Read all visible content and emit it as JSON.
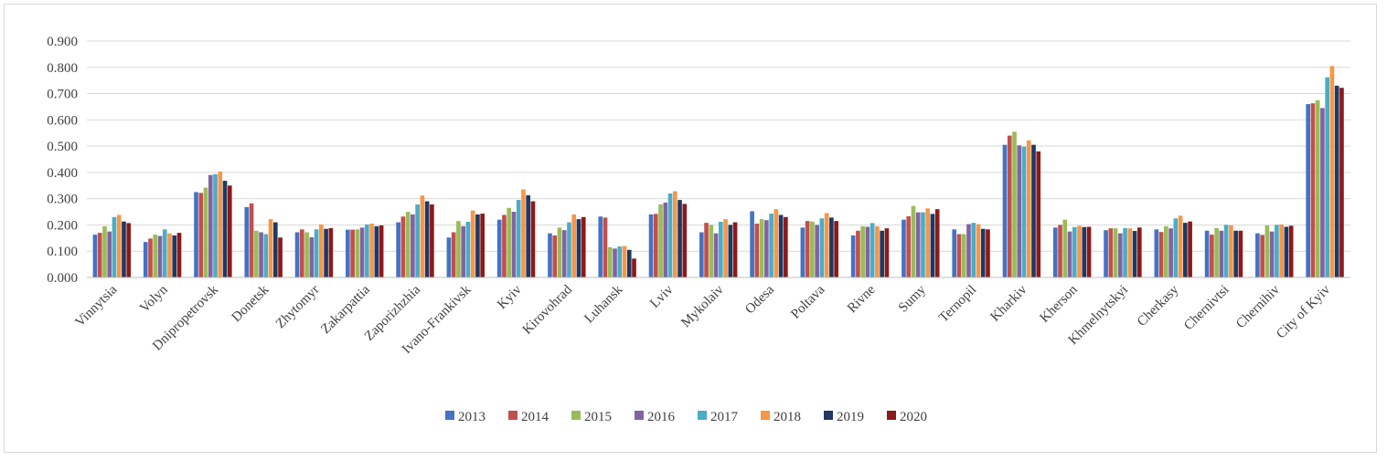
{
  "chart_data": {
    "type": "bar",
    "title": "",
    "xlabel": "",
    "ylabel": "",
    "ylim": [
      0,
      0.9
    ],
    "yticks": [
      "0.000",
      "0.100",
      "0.200",
      "0.300",
      "0.400",
      "0.500",
      "0.600",
      "0.700",
      "0.800",
      "0.900"
    ],
    "grid": true,
    "legend_position": "bottom",
    "categories": [
      "Vinnytsia",
      "Volyn",
      "Dnipropetrovsk",
      "Donetsk",
      "Zhytomyr",
      "Zakarpattia",
      "Zaporizhzhia",
      "Ivano-Frankivsk",
      "Kyiv",
      "Kirovohrad",
      "Luhansk",
      "Lviv",
      "Mykolaiv",
      "Odesa",
      "Poltava",
      "Rivne",
      "Sumy",
      "Ternopil",
      "Kharkiv",
      "Kherson",
      "Khmelnytskyi",
      "Cherkasy",
      "Chernivtsi",
      "Chernihiv",
      "City of Kyiv"
    ],
    "series": [
      {
        "name": "2013",
        "color": "#4472c4",
        "values": [
          0.163,
          0.135,
          0.325,
          0.268,
          0.172,
          0.182,
          0.21,
          0.152,
          0.22,
          0.168,
          0.232,
          0.24,
          0.172,
          0.252,
          0.19,
          0.16,
          0.22,
          0.183,
          0.505,
          0.19,
          0.18,
          0.183,
          0.178,
          0.168,
          0.66
        ]
      },
      {
        "name": "2014",
        "color": "#c0504d",
        "values": [
          0.17,
          0.148,
          0.322,
          0.282,
          0.183,
          0.182,
          0.232,
          0.172,
          0.238,
          0.16,
          0.228,
          0.242,
          0.208,
          0.205,
          0.215,
          0.178,
          0.233,
          0.165,
          0.54,
          0.2,
          0.187,
          0.173,
          0.163,
          0.162,
          0.663
        ]
      },
      {
        "name": "2015",
        "color": "#9bbb59",
        "values": [
          0.195,
          0.163,
          0.342,
          0.178,
          0.172,
          0.183,
          0.25,
          0.215,
          0.265,
          0.19,
          0.115,
          0.278,
          0.2,
          0.222,
          0.213,
          0.195,
          0.272,
          0.165,
          0.555,
          0.22,
          0.187,
          0.195,
          0.188,
          0.198,
          0.675
        ]
      },
      {
        "name": "2016",
        "color": "#8064a2",
        "values": [
          0.175,
          0.158,
          0.39,
          0.172,
          0.153,
          0.19,
          0.24,
          0.195,
          0.25,
          0.18,
          0.11,
          0.285,
          0.168,
          0.218,
          0.2,
          0.193,
          0.248,
          0.203,
          0.503,
          0.175,
          0.168,
          0.187,
          0.178,
          0.175,
          0.645
        ]
      },
      {
        "name": "2017",
        "color": "#4bacc6",
        "values": [
          0.23,
          0.183,
          0.393,
          0.165,
          0.183,
          0.202,
          0.278,
          0.212,
          0.295,
          0.21,
          0.118,
          0.32,
          0.212,
          0.243,
          0.225,
          0.207,
          0.248,
          0.208,
          0.498,
          0.192,
          0.188,
          0.225,
          0.2,
          0.2,
          0.762
        ]
      },
      {
        "name": "2018",
        "color": "#f79646",
        "values": [
          0.238,
          0.168,
          0.403,
          0.222,
          0.202,
          0.205,
          0.312,
          0.255,
          0.335,
          0.24,
          0.12,
          0.328,
          0.222,
          0.26,
          0.245,
          0.195,
          0.263,
          0.203,
          0.522,
          0.197,
          0.187,
          0.235,
          0.198,
          0.202,
          0.805
        ]
      },
      {
        "name": "2019",
        "color": "#1f3864",
        "values": [
          0.213,
          0.16,
          0.368,
          0.21,
          0.185,
          0.195,
          0.29,
          0.24,
          0.313,
          0.222,
          0.105,
          0.295,
          0.2,
          0.238,
          0.228,
          0.178,
          0.242,
          0.185,
          0.505,
          0.192,
          0.177,
          0.208,
          0.178,
          0.193,
          0.73
        ]
      },
      {
        "name": "2020",
        "color": "#8b1a1a",
        "values": [
          0.207,
          0.17,
          0.35,
          0.152,
          0.188,
          0.198,
          0.278,
          0.243,
          0.29,
          0.23,
          0.072,
          0.28,
          0.21,
          0.23,
          0.215,
          0.187,
          0.26,
          0.183,
          0.48,
          0.193,
          0.19,
          0.213,
          0.178,
          0.197,
          0.722
        ]
      }
    ]
  }
}
